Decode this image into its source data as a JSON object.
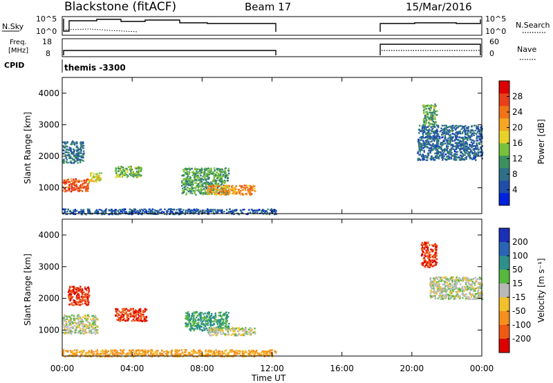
{
  "header": {
    "station": "Blackstone (fitACF)",
    "beam": "Beam 17",
    "date": "15/Mar/2016",
    "cpid_label": "CPID",
    "cpid_text": "themis -3300"
  },
  "top_panels": {
    "nsky_label": "N.Sky",
    "nsky_ticks": [
      "10^5",
      "10^0"
    ],
    "nsearch_label": "N.Search",
    "nsearch_ticks": [
      "10^5",
      "10^0"
    ],
    "freq_label_1": "Freq.",
    "freq_label_2": "[MHz]",
    "freq_ticks": [
      "18",
      "8"
    ],
    "nave_label": "Nave",
    "nave_ticks": [
      "60",
      "0"
    ]
  },
  "axes": {
    "ylabel": "Slant Range [km]",
    "xlabel": "Time UT",
    "y_ticks": [
      "1000",
      "2000",
      "3000",
      "4000"
    ],
    "x_ticks": [
      "00:00",
      "04:00",
      "08:00",
      "12:00",
      "16:00",
      "20:00",
      "00:00"
    ]
  },
  "power_scale": {
    "label": "Power [dB]",
    "ticks": [
      "4",
      "8",
      "12",
      "16",
      "20",
      "24",
      "28"
    ],
    "colors": [
      "#0022dd",
      "#1f4eaa",
      "#2f6f8a",
      "#3c9060",
      "#77c23a",
      "#e8d22a",
      "#f5a623",
      "#f07418",
      "#e8401a",
      "#dd0000"
    ]
  },
  "velocity_scale": {
    "label": "Velocity [m s⁻¹]",
    "ticks": [
      "200",
      "100",
      "50",
      "15",
      "-15",
      "-50",
      "-100",
      "-200"
    ],
    "colors": [
      "#1b2fb8",
      "#2a64b4",
      "#2f8f8a",
      "#56b83e",
      "#b8b8b8",
      "#f2c02a",
      "#f58f1d",
      "#ee5a14",
      "#dd0000"
    ]
  },
  "chart_data": {
    "type": "heatmap",
    "title": "Blackstone (fitACF)",
    "xlabel": "Time UT",
    "ylabel": "Slant Range [km]",
    "x_range_hours": [
      0,
      24
    ],
    "y_range_km": [
      180,
      4500
    ],
    "data_gap_hours": [
      12.25,
      18.25
    ],
    "panels": [
      {
        "name": "Power",
        "unit": "dB",
        "color_range": [
          0,
          32
        ],
        "regions": [
          {
            "t": [
              0.0,
              1.5
            ],
            "range_km": [
              900,
              1300
            ],
            "value": 26
          },
          {
            "t": [
              1.5,
              2.2
            ],
            "range_km": [
              1200,
              1500
            ],
            "value": 18
          },
          {
            "t": [
              0.0,
              1.2
            ],
            "range_km": [
              1800,
              2500
            ],
            "value": 8
          },
          {
            "t": [
              3.0,
              4.5
            ],
            "range_km": [
              1350,
              1700
            ],
            "value": 14
          },
          {
            "t": [
              6.8,
              9.5
            ],
            "range_km": [
              800,
              1650
            ],
            "value": 12
          },
          {
            "t": [
              8.2,
              11.0
            ],
            "range_km": [
              800,
              1100
            ],
            "value": 22
          },
          {
            "t": [
              0.0,
              12.2
            ],
            "range_km": [
              180,
              350
            ],
            "value": 6
          },
          {
            "t": [
              20.3,
              24.0
            ],
            "range_km": [
              1900,
              3000
            ],
            "value": 7
          },
          {
            "t": [
              20.6,
              21.4
            ],
            "range_km": [
              3000,
              3700
            ],
            "value": 13
          }
        ]
      },
      {
        "name": "Velocity",
        "unit": "m s^-1",
        "color_range": [
          -250,
          250
        ],
        "regions": [
          {
            "t": [
              0.0,
              2.0
            ],
            "range_km": [
              900,
              1500
            ],
            "value": 0
          },
          {
            "t": [
              0.3,
              1.5
            ],
            "range_km": [
              1800,
              2400
            ],
            "value": -200
          },
          {
            "t": [
              3.0,
              4.8
            ],
            "range_km": [
              1300,
              1700
            ],
            "value": -200
          },
          {
            "t": [
              7.0,
              9.5
            ],
            "range_km": [
              1000,
              1600
            ],
            "value": 60
          },
          {
            "t": [
              8.3,
              11.0
            ],
            "range_km": [
              850,
              1100
            ],
            "value": 0
          },
          {
            "t": [
              0.0,
              12.2
            ],
            "range_km": [
              180,
              400
            ],
            "value": -60
          },
          {
            "t": [
              20.5,
              21.4
            ],
            "range_km": [
              3000,
              3800
            ],
            "value": -200
          },
          {
            "t": [
              21.0,
              24.0
            ],
            "range_km": [
              2000,
              2700
            ],
            "value": 0
          }
        ]
      }
    ]
  }
}
